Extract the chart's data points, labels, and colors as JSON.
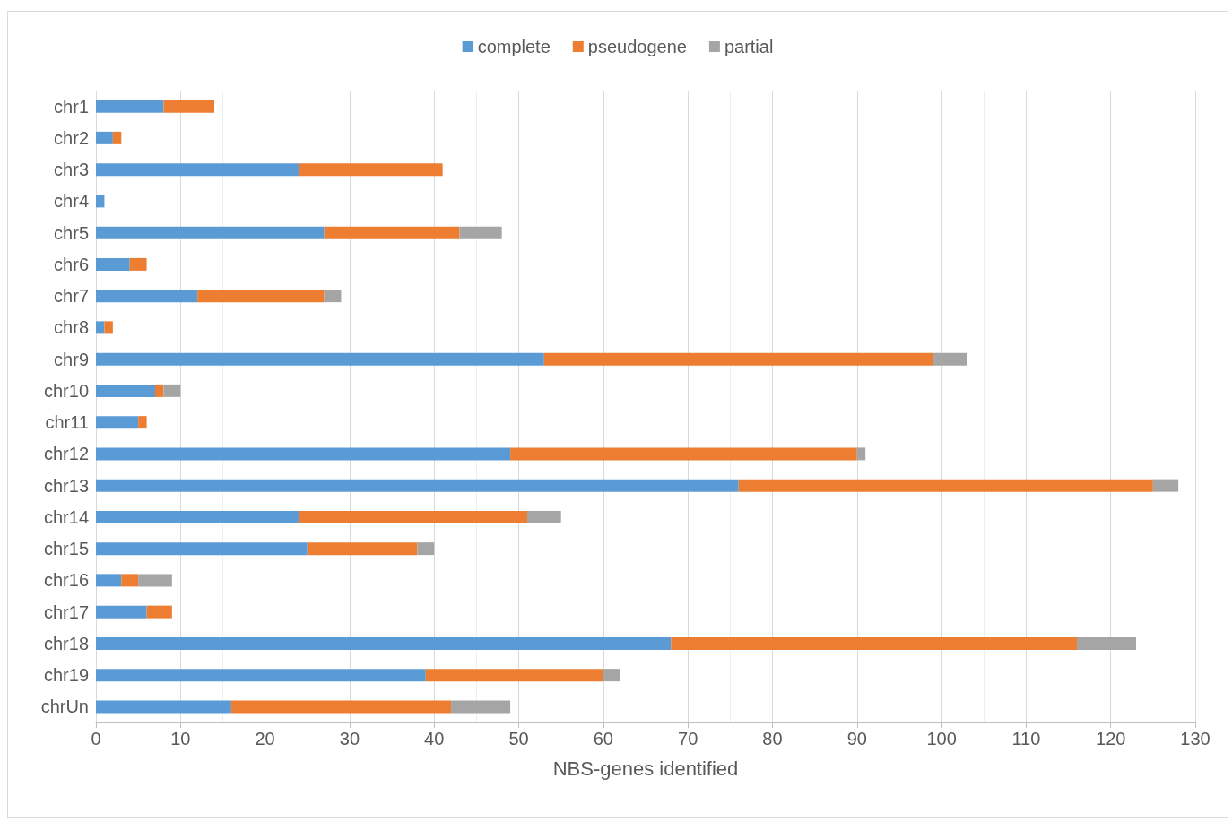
{
  "chart_data": {
    "type": "bar",
    "orientation": "horizontal",
    "stacked": true,
    "xlabel": "NBS-genes identified",
    "categories": [
      "chr1",
      "chr2",
      "chr3",
      "chr4",
      "chr5",
      "chr6",
      "chr7",
      "chr8",
      "chr9",
      "chr10",
      "chr11",
      "chr12",
      "chr13",
      "chr14",
      "chr15",
      "chr16",
      "chr17",
      "chr18",
      "chr19",
      "chrUn"
    ],
    "series": [
      {
        "name": "complete",
        "color": "#5b9bd5",
        "values": [
          8,
          2,
          24,
          1,
          27,
          4,
          12,
          1,
          53,
          7,
          5,
          49,
          76,
          24,
          25,
          3,
          6,
          68,
          39,
          16
        ]
      },
      {
        "name": "pseudogene",
        "color": "#ed7d31",
        "values": [
          6,
          1,
          17,
          0,
          16,
          2,
          15,
          1,
          46,
          1,
          1,
          41,
          49,
          27,
          13,
          2,
          3,
          48,
          21,
          26
        ]
      },
      {
        "name": "partial",
        "color": "#a5a5a5",
        "values": [
          0,
          0,
          0,
          0,
          5,
          0,
          2,
          0,
          4,
          2,
          0,
          1,
          3,
          4,
          2,
          4,
          0,
          7,
          2,
          7
        ]
      }
    ],
    "xlim": [
      0,
      130
    ],
    "xticks": [
      0,
      10,
      20,
      30,
      40,
      50,
      60,
      70,
      80,
      90,
      100,
      110,
      120,
      130
    ],
    "grid": "x",
    "legend": "top"
  }
}
